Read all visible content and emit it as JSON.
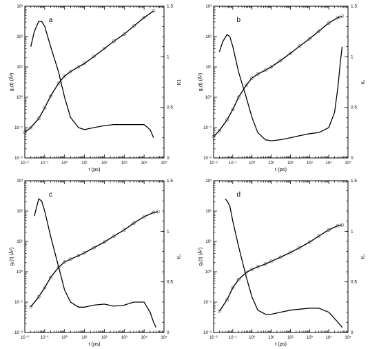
{
  "chart_data": [
    {
      "type": "line",
      "panel_label": "a",
      "xlabel": "t (ps)",
      "ylabel_left": "g₁(t) (Å²)",
      "ylabel_right": "K1",
      "x_scale": "log",
      "xlim": [
        0.01,
        100000
      ],
      "y_left_scale": "log",
      "ylim_left": [
        0.01,
        1000
      ],
      "ylim_right": [
        0,
        1.5
      ],
      "x_ticks": [
        "10⁻²",
        "10⁻¹",
        "10⁰",
        "10¹",
        "10²",
        "10³",
        "10⁴",
        "10⁵"
      ],
      "y_left_ticks": [
        "10⁻²",
        "10⁻¹",
        "10⁰",
        "10¹",
        "10²",
        "10³"
      ],
      "y_right_ticks": [
        "0",
        "0.5",
        "1",
        "1.5"
      ],
      "series": [
        {
          "axis": "left",
          "style": "line+circles",
          "x": [
            0.01,
            0.02,
            0.05,
            0.1,
            0.2,
            0.5,
            1,
            2,
            5,
            10,
            30,
            100,
            300,
            1000,
            3000,
            10000,
            30000
          ],
          "y": [
            0.07,
            0.1,
            0.2,
            0.45,
            1.1,
            2.9,
            5,
            7,
            10,
            13,
            22,
            40,
            70,
            120,
            220,
            420,
            700
          ]
        },
        {
          "axis": "right",
          "style": "line",
          "x": [
            0.02,
            0.03,
            0.05,
            0.07,
            0.1,
            0.2,
            0.5,
            1,
            2,
            5,
            10,
            30,
            100,
            300,
            1000,
            3000,
            10000,
            20000,
            30000
          ],
          "y": [
            1.1,
            1.25,
            1.35,
            1.35,
            1.3,
            1.1,
            0.85,
            0.6,
            0.4,
            0.3,
            0.28,
            0.3,
            0.32,
            0.33,
            0.33,
            0.33,
            0.33,
            0.28,
            0.2
          ]
        }
      ]
    },
    {
      "type": "line",
      "panel_label": "b",
      "xlabel": "t (ps)",
      "ylabel_left": "g₁(t) (Å²)",
      "ylabel_right": "K₁",
      "x_scale": "log",
      "xlim": [
        0.01,
        100000
      ],
      "y_left_scale": "log",
      "ylim_left": [
        0.01,
        1000
      ],
      "ylim_right": [
        0,
        1.5
      ],
      "x_ticks": [
        "10⁻²",
        "10⁻¹",
        "10⁰",
        "10¹",
        "10²",
        "10³",
        "10⁴",
        "10⁵"
      ],
      "y_left_ticks": [
        "10⁻²",
        "10⁻¹",
        "10⁰",
        "10¹",
        "10²",
        "10³"
      ],
      "y_right_ticks": [
        "0",
        "0.5",
        "1",
        "1.5"
      ],
      "series": [
        {
          "axis": "left",
          "style": "line+circles",
          "x": [
            0.01,
            0.02,
            0.05,
            0.1,
            0.2,
            0.5,
            1,
            2,
            5,
            10,
            30,
            100,
            300,
            1000,
            3000,
            10000,
            30000,
            50000
          ],
          "y": [
            0.05,
            0.08,
            0.18,
            0.4,
            1,
            2.5,
            4.3,
            5.8,
            7.8,
            10,
            16,
            28,
            48,
            85,
            150,
            280,
            420,
            470
          ]
        },
        {
          "axis": "right",
          "style": "line",
          "x": [
            0.02,
            0.03,
            0.05,
            0.07,
            0.1,
            0.2,
            0.5,
            1,
            2,
            5,
            10,
            30,
            100,
            300,
            1000,
            3000,
            10000,
            20000,
            30000,
            40000,
            50000
          ],
          "y": [
            1.05,
            1.15,
            1.22,
            1.2,
            1.1,
            0.85,
            0.6,
            0.4,
            0.25,
            0.18,
            0.17,
            0.18,
            0.2,
            0.22,
            0.24,
            0.25,
            0.3,
            0.45,
            0.7,
            0.95,
            1.1
          ]
        }
      ]
    },
    {
      "type": "line",
      "panel_label": "c",
      "xlabel": "t (ps)",
      "ylabel_left": "g₁(t) (Å²)",
      "ylabel_right": "K₁",
      "x_scale": "log",
      "xlim": [
        0.01,
        100000
      ],
      "y_left_scale": "log",
      "ylim_left": [
        0.01,
        1000
      ],
      "ylim_right": [
        0,
        1.5
      ],
      "x_ticks": [
        "10⁻²",
        "10⁻¹",
        "10⁰",
        "10¹",
        "10²",
        "10³",
        "10⁴",
        "10⁵"
      ],
      "y_left_ticks": [
        "10⁻²",
        "10⁻¹",
        "10⁰",
        "10¹",
        "10²",
        "10³"
      ],
      "y_right_ticks": [
        "0",
        "0.5",
        "1",
        "1.5"
      ],
      "series": [
        {
          "axis": "left",
          "style": "line+circles",
          "x": [
            0.02,
            0.05,
            0.1,
            0.2,
            0.5,
            1,
            2,
            5,
            10,
            30,
            100,
            300,
            1000,
            3000,
            10000,
            30000,
            50000
          ],
          "y": [
            0.07,
            0.15,
            0.3,
            0.65,
            1.4,
            2.1,
            2.6,
            3.4,
            4.2,
            6.2,
            9.5,
            15,
            24,
            40,
            65,
            90,
            95
          ]
        },
        {
          "axis": "right",
          "style": "line",
          "x": [
            0.03,
            0.05,
            0.07,
            0.1,
            0.2,
            0.5,
            1,
            2,
            5,
            10,
            30,
            100,
            300,
            1000,
            3000,
            10000,
            20000,
            30000,
            40000
          ],
          "y": [
            1.15,
            1.32,
            1.3,
            1.2,
            0.95,
            0.65,
            0.42,
            0.3,
            0.25,
            0.25,
            0.27,
            0.28,
            0.26,
            0.27,
            0.3,
            0.3,
            0.2,
            0.1,
            0.05
          ]
        }
      ]
    },
    {
      "type": "line",
      "panel_label": "d",
      "xlabel": "t (ps)",
      "ylabel_left": "g₁(t) (Å²)",
      "ylabel_right": "K₁",
      "x_scale": "log",
      "xlim": [
        0.01,
        100000
      ],
      "y_left_scale": "log",
      "ylim_left": [
        0.01,
        1000
      ],
      "ylim_right": [
        0,
        1.5
      ],
      "x_ticks": [
        "10⁻²",
        "10⁻¹",
        "10⁰",
        "10¹",
        "10²",
        "10³",
        "10⁴",
        "10⁵"
      ],
      "y_left_ticks": [
        "10⁻²",
        "10⁻¹",
        "10⁰",
        "10¹",
        "10²",
        "10³"
      ],
      "y_right_ticks": [
        "0",
        "0.5",
        "1",
        "1.5"
      ],
      "series": [
        {
          "axis": "left",
          "style": "line+circles",
          "x": [
            0.02,
            0.05,
            0.1,
            0.2,
            0.5,
            1,
            2,
            5,
            10,
            30,
            100,
            300,
            1000,
            3000,
            10000,
            30000,
            50000
          ],
          "y": [
            0.05,
            0.12,
            0.3,
            0.55,
            0.95,
            1.2,
            1.45,
            1.8,
            2.2,
            3,
            4.3,
            6.2,
            9.5,
            15,
            24,
            33,
            35
          ]
        },
        {
          "axis": "right",
          "style": "line",
          "x": [
            0.04,
            0.05,
            0.07,
            0.1,
            0.2,
            0.5,
            1,
            2,
            5,
            10,
            30,
            100,
            300,
            1000,
            3000,
            10000,
            30000,
            50000
          ],
          "y": [
            1.32,
            1.3,
            1.25,
            1.1,
            0.85,
            0.55,
            0.35,
            0.22,
            0.18,
            0.18,
            0.2,
            0.22,
            0.23,
            0.24,
            0.24,
            0.2,
            0.1,
            0.05
          ]
        }
      ]
    }
  ]
}
